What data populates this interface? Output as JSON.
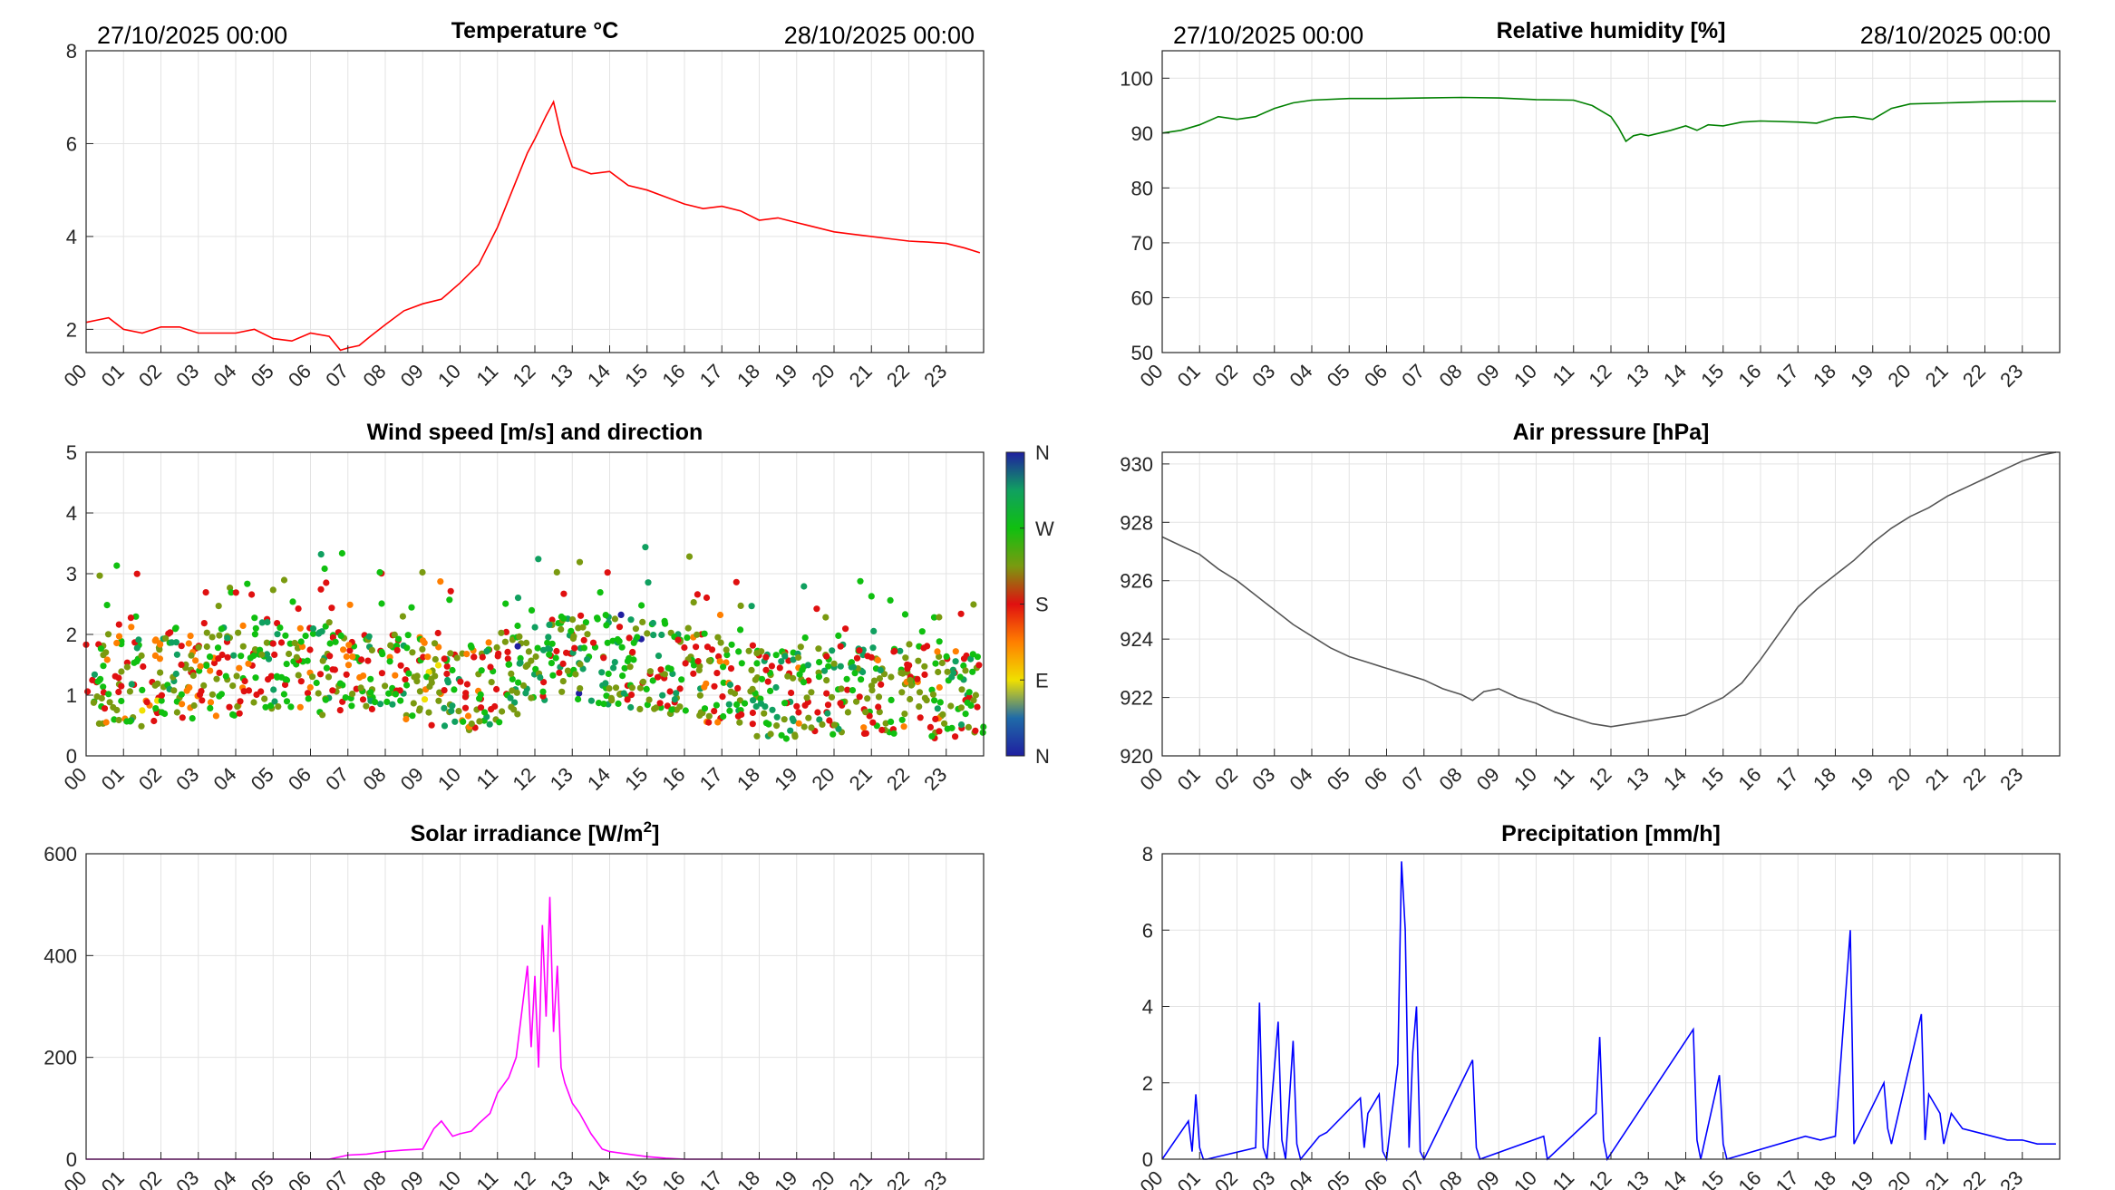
{
  "hour_labels": [
    "00",
    "01",
    "02",
    "03",
    "04",
    "05",
    "06",
    "07",
    "08",
    "09",
    "10",
    "11",
    "12",
    "13",
    "14",
    "15",
    "16",
    "17",
    "18",
    "19",
    "20",
    "21",
    "22",
    "23"
  ],
  "colors": {
    "temperature": "#ff0000",
    "humidity": "#008000",
    "pressure": "#555555",
    "solar": "#ff00ff",
    "precipitation": "#0000ff",
    "grid": "#e3e3e3",
    "axis": "#262626"
  },
  "chart_data": [
    {
      "id": "temperature",
      "type": "line",
      "title": "Temperature °C",
      "date_start": "27/10/2025 00:00",
      "date_end": "28/10/2025 00:00",
      "ylim": [
        1.5,
        8
      ],
      "yticks": [
        2,
        4,
        6,
        8
      ],
      "grid": true,
      "x_hours": [
        0,
        0.3,
        0.6,
        1,
        1.5,
        2,
        2.5,
        3,
        3.5,
        4,
        4.5,
        5,
        5.5,
        6,
        6.5,
        6.8,
        7,
        7.3,
        7.6,
        8,
        8.5,
        9,
        9.5,
        10,
        10.5,
        11,
        11.5,
        11.8,
        12,
        12.3,
        12.5,
        12.7,
        13,
        13.5,
        14,
        14.5,
        15,
        15.5,
        16,
        16.5,
        17,
        17.5,
        18,
        18.5,
        19,
        19.5,
        20,
        20.5,
        21,
        21.5,
        22,
        22.5,
        23,
        23.5,
        23.9
      ],
      "values": [
        2.15,
        2.2,
        2.25,
        2.0,
        1.92,
        2.05,
        2.05,
        1.92,
        1.92,
        1.92,
        2.0,
        1.8,
        1.75,
        1.92,
        1.85,
        1.55,
        1.6,
        1.65,
        1.85,
        2.1,
        2.4,
        2.55,
        2.65,
        3.0,
        3.4,
        4.2,
        5.2,
        5.8,
        6.1,
        6.6,
        6.9,
        6.2,
        5.5,
        5.35,
        5.4,
        5.1,
        5.0,
        4.85,
        4.7,
        4.6,
        4.65,
        4.55,
        4.35,
        4.4,
        4.3,
        4.2,
        4.1,
        4.05,
        4.0,
        3.95,
        3.9,
        3.88,
        3.85,
        3.75,
        3.65
      ]
    },
    {
      "id": "humidity",
      "type": "line",
      "title": "Relative humidity [%]",
      "date_start": "27/10/2025 00:00",
      "date_end": "28/10/2025 00:00",
      "ylim": [
        50,
        105
      ],
      "yticks": [
        50,
        60,
        70,
        80,
        90,
        100
      ],
      "grid": true,
      "x_hours": [
        0,
        0.5,
        1,
        1.5,
        2,
        2.5,
        3,
        3.5,
        4,
        5,
        6,
        7,
        8,
        9,
        10,
        11,
        11.5,
        12,
        12.2,
        12.4,
        12.6,
        12.8,
        13,
        13.3,
        13.6,
        14,
        14.3,
        14.6,
        15,
        15.5,
        16,
        17,
        17.5,
        18,
        18.5,
        19,
        19.5,
        20,
        21,
        22,
        23,
        23.9
      ],
      "values": [
        90,
        90.5,
        91.5,
        93,
        92.5,
        93,
        94.5,
        95.5,
        96,
        96.3,
        96.3,
        96.4,
        96.5,
        96.4,
        96.1,
        96,
        95,
        93,
        91,
        88.5,
        89.5,
        89.8,
        89.5,
        90,
        90.5,
        91.3,
        90.5,
        91.5,
        91.3,
        92,
        92.2,
        92,
        91.8,
        92.8,
        93,
        92.5,
        94.5,
        95.3,
        95.5,
        95.7,
        95.8,
        95.8
      ]
    },
    {
      "id": "wind",
      "type": "scatter",
      "title": "Wind speed [m/s] and direction",
      "ylim": [
        0,
        5
      ],
      "yticks": [
        0,
        1,
        2,
        3,
        4,
        5
      ],
      "grid": true,
      "colorbar": {
        "labels": [
          "N",
          "E",
          "S",
          "W",
          "N"
        ],
        "label_positions_deg": [
          0,
          90,
          180,
          270,
          360
        ],
        "colors": [
          "#1f1fa0",
          "#1f6ba8",
          "#f0e000",
          "#ff7f00",
          "#e01010",
          "#7a9a10",
          "#10c010",
          "#10a060",
          "#1f1fa0"
        ]
      },
      "sample_hours": [
        0,
        0.5,
        1,
        1.5,
        2,
        2.5,
        3,
        3.5,
        4,
        4.5,
        5,
        5.5,
        6,
        6.5,
        7,
        7.5,
        8,
        8.5,
        9,
        9.5,
        10,
        10.5,
        11,
        11.5,
        12,
        12.5,
        13,
        13.5,
        14,
        14.5,
        15,
        15.5,
        16,
        16.5,
        17,
        17.5,
        18,
        18.5,
        19,
        19.5,
        20,
        20.5,
        21,
        21.5,
        22,
        22.5,
        23,
        23.5
      ],
      "speed_ms": [
        1.2,
        1.3,
        1.2,
        1.3,
        1.4,
        1.3,
        1.3,
        1.4,
        1.4,
        1.5,
        1.5,
        1.5,
        1.4,
        1.5,
        1.4,
        1.4,
        1.3,
        1.3,
        1.2,
        1.2,
        1.1,
        1.2,
        1.3,
        1.4,
        1.5,
        1.6,
        1.6,
        1.6,
        1.6,
        1.5,
        1.5,
        1.4,
        1.4,
        1.3,
        1.1,
        1.0,
        1.0,
        1.0,
        1.1,
        1.1,
        1.1,
        1.1,
        1.1,
        1.1,
        1.1,
        1.0,
        1.0,
        1.0
      ],
      "direction_deg": [
        240,
        200,
        230,
        180,
        250,
        190,
        200,
        240,
        200,
        260,
        230,
        200,
        260,
        210,
        200,
        240,
        230,
        210,
        180,
        240,
        200,
        230,
        250,
        260,
        240,
        250,
        260,
        270,
        270,
        260,
        250,
        240,
        230,
        200,
        230,
        240,
        250,
        240,
        230,
        240,
        240,
        230,
        230,
        220,
        210,
        220,
        230,
        230
      ]
    },
    {
      "id": "pressure",
      "type": "line",
      "title": "Air pressure [hPa]",
      "ylim": [
        920,
        930.4
      ],
      "yticks": [
        920,
        922,
        924,
        926,
        928,
        930
      ],
      "grid": true,
      "x_hours": [
        0,
        0.5,
        1,
        1.5,
        2,
        2.5,
        3,
        3.5,
        4,
        4.5,
        5,
        5.5,
        6,
        6.5,
        7,
        7.5,
        8,
        8.3,
        8.6,
        9,
        9.5,
        10,
        10.5,
        11,
        11.5,
        12,
        12.5,
        13,
        13.5,
        14,
        14.5,
        15,
        15.5,
        16,
        16.5,
        17,
        17.5,
        18,
        18.5,
        19,
        19.5,
        20,
        20.5,
        21,
        21.5,
        22,
        22.5,
        23,
        23.5,
        23.9
      ],
      "values": [
        927.5,
        927.2,
        926.9,
        926.4,
        926.0,
        925.5,
        925.0,
        924.5,
        924.1,
        923.7,
        923.4,
        923.2,
        923.0,
        922.8,
        922.6,
        922.3,
        922.1,
        921.9,
        922.2,
        922.3,
        922.0,
        921.8,
        921.5,
        921.3,
        921.1,
        921.0,
        921.1,
        921.2,
        921.3,
        921.4,
        921.7,
        922.0,
        922.5,
        923.3,
        924.2,
        925.1,
        925.7,
        926.2,
        926.7,
        927.3,
        927.8,
        928.2,
        928.5,
        928.9,
        929.2,
        929.5,
        929.8,
        930.1,
        930.3,
        930.4
      ]
    },
    {
      "id": "solar",
      "type": "line",
      "title": "Solar irradiance [W/m2]",
      "ylim": [
        0,
        600
      ],
      "yticks": [
        0,
        200,
        400,
        600
      ],
      "grid": true,
      "x_hours": [
        0,
        6.5,
        7,
        7.5,
        8,
        8.5,
        9,
        9.3,
        9.5,
        9.8,
        10,
        10.3,
        10.5,
        10.8,
        11,
        11.3,
        11.5,
        11.8,
        11.9,
        12,
        12.1,
        12.2,
        12.3,
        12.4,
        12.5,
        12.6,
        12.7,
        12.8,
        13,
        13.2,
        13.5,
        13.8,
        14,
        14.5,
        15,
        15.5,
        16,
        23.9
      ],
      "values": [
        0,
        0,
        8,
        10,
        15,
        18,
        20,
        60,
        75,
        45,
        50,
        55,
        70,
        90,
        130,
        160,
        200,
        380,
        220,
        360,
        180,
        460,
        280,
        515,
        250,
        380,
        180,
        150,
        110,
        90,
        50,
        20,
        15,
        10,
        5,
        2,
        0,
        0
      ]
    },
    {
      "id": "precipitation",
      "type": "line",
      "title": "Precipitation [mm/h]",
      "ylim": [
        0,
        8
      ],
      "yticks": [
        0,
        2,
        4,
        6,
        8
      ],
      "grid": true,
      "x_hours": [
        0,
        0.7,
        0.8,
        0.9,
        1.0,
        1.1,
        1.2,
        2.5,
        2.6,
        2.7,
        2.8,
        3.1,
        3.2,
        3.3,
        3.5,
        3.6,
        3.7,
        4.2,
        4.4,
        5.3,
        5.4,
        5.5,
        5.8,
        5.9,
        6.0,
        6.3,
        6.4,
        6.5,
        6.6,
        6.7,
        6.8,
        6.9,
        7.0,
        8.3,
        8.4,
        8.5,
        10.2,
        10.3,
        11.6,
        11.7,
        11.8,
        11.9,
        14.2,
        14.3,
        14.4,
        14.9,
        15.0,
        15.1,
        17.2,
        17.6,
        18.0,
        18.4,
        18.5,
        18.6,
        19.3,
        19.4,
        19.5,
        20.3,
        20.4,
        20.5,
        20.8,
        20.9,
        21.1,
        21.4,
        22.2,
        22.6,
        23.0,
        23.4,
        23.9
      ],
      "values": [
        0,
        1.0,
        0.2,
        1.7,
        0.3,
        0,
        0,
        0.3,
        4.1,
        0.3,
        0,
        3.6,
        0.5,
        0,
        3.1,
        0.4,
        0,
        0.6,
        0.7,
        1.6,
        0.3,
        1.2,
        1.7,
        0.2,
        0,
        2.5,
        7.8,
        6.0,
        0.3,
        2.8,
        4.0,
        0.2,
        0,
        2.6,
        0.3,
        0,
        0.6,
        0,
        1.2,
        3.2,
        0.5,
        0,
        3.4,
        0.5,
        0,
        2.2,
        0.4,
        0,
        0.6,
        0.5,
        0.6,
        6.0,
        0.4,
        0.6,
        2.0,
        0.8,
        0.4,
        3.8,
        0.5,
        1.7,
        1.2,
        0.4,
        1.2,
        0.8,
        0.6,
        0.5,
        0.5,
        0.4,
        0.4
      ]
    }
  ]
}
